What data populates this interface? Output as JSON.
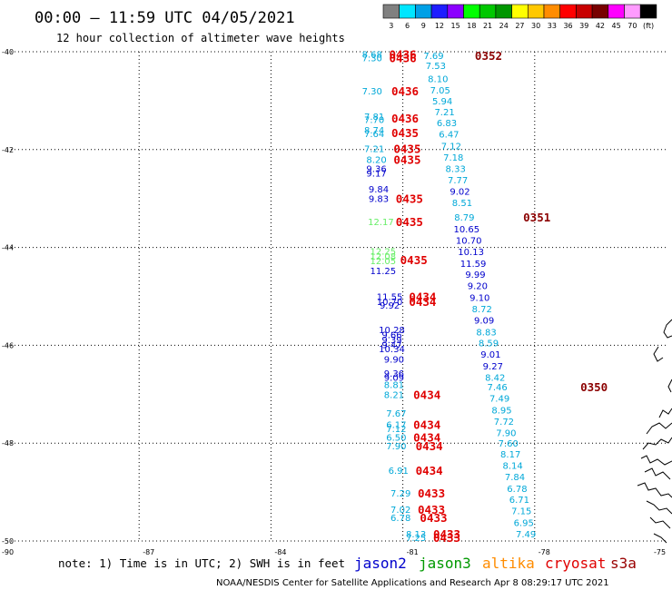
{
  "title": "00:00 – 11:59 UTC 04/05/2021",
  "subtitle": "12 hour collection of altimeter wave heights",
  "scale": {
    "colors": [
      "#808080",
      "#00e6ff",
      "#00a0e6",
      "#1e1eff",
      "#8c00ff",
      "#00ff00",
      "#00c800",
      "#009600",
      "#ffff00",
      "#ffc800",
      "#ff8c00",
      "#ff0000",
      "#c80000",
      "#780000",
      "#ff00ff",
      "#ff9bff",
      "#000000"
    ],
    "labels": [
      "3",
      "6",
      "9",
      "12",
      "15",
      "18",
      "21",
      "24",
      "27",
      "30",
      "33",
      "36",
      "39",
      "42",
      "45",
      "70",
      "(ft)"
    ]
  },
  "note": "note: 1) Time is in UTC; 2) SWH is in feet",
  "satellites": [
    {
      "name": "jason2",
      "color": "#0000cc"
    },
    {
      "name": "jason3",
      "color": "#009900"
    },
    {
      "name": "altika",
      "color": "#ff8c00"
    },
    {
      "name": "cryosat",
      "color": "#e00000"
    },
    {
      "name": "s3a",
      "color": "#990000"
    }
  ],
  "footer": "NOAA/NESDIS Center for Satellite Applications and Research   Apr  8 08:29:17 UTC 2021",
  "chart_data": {
    "type": "scatter",
    "title": "00:00 – 11:59 UTC 04/05/2021",
    "subtitle": "12 hour collection of altimeter wave heights",
    "xlim": [
      -90,
      -75
    ],
    "ylim": [
      -50,
      -40
    ],
    "x_ticks": [
      -90,
      -87,
      -84,
      -81,
      -78,
      -75
    ],
    "y_ticks": [
      -40,
      -42,
      -44,
      -46,
      -48,
      -50
    ],
    "x_tick_labels": [
      "-90",
      "-87",
      "-84",
      "-81",
      "-78",
      "-75"
    ],
    "y_tick_labels": [
      "-40",
      "-42",
      "-44",
      "-46",
      "-48",
      "-50"
    ],
    "grid": true,
    "colors": {
      "cyan": "#00a8d8",
      "blue": "#0000cc",
      "green": "#66ee66",
      "red": "#e00000",
      "darkred": "#8b0000"
    },
    "wave_heights": [
      {
        "x": -81.7,
        "y": -40.05,
        "v": "8.68",
        "c": "cyan"
      },
      {
        "x": -81.7,
        "y": -40.12,
        "v": "7.30",
        "c": "cyan"
      },
      {
        "x": -81.7,
        "y": -40.8,
        "v": "7.30",
        "c": "cyan"
      },
      {
        "x": -81.65,
        "y": -41.32,
        "v": "7.81",
        "c": "cyan"
      },
      {
        "x": -81.65,
        "y": -41.38,
        "v": "7.70",
        "c": "cyan"
      },
      {
        "x": -81.65,
        "y": -41.6,
        "v": "8.74",
        "c": "cyan"
      },
      {
        "x": -81.65,
        "y": -41.67,
        "v": "7.64",
        "c": "cyan"
      },
      {
        "x": -81.65,
        "y": -41.98,
        "v": "7.21",
        "c": "cyan"
      },
      {
        "x": -81.6,
        "y": -42.2,
        "v": "8.20",
        "c": "cyan"
      },
      {
        "x": -81.6,
        "y": -42.38,
        "v": "9.36",
        "c": "blue"
      },
      {
        "x": -81.6,
        "y": -42.48,
        "v": "9.17",
        "c": "blue"
      },
      {
        "x": -81.55,
        "y": -42.8,
        "v": "9.84",
        "c": "blue"
      },
      {
        "x": -81.55,
        "y": -43.0,
        "v": "9.83",
        "c": "blue"
      },
      {
        "x": -81.5,
        "y": -43.47,
        "v": "12.17",
        "c": "green"
      },
      {
        "x": -81.45,
        "y": -44.07,
        "v": "12.25",
        "c": "green"
      },
      {
        "x": -81.45,
        "y": -44.17,
        "v": "12.08",
        "c": "green"
      },
      {
        "x": -81.45,
        "y": -44.27,
        "v": "12.05",
        "c": "green"
      },
      {
        "x": -81.45,
        "y": -44.47,
        "v": "11.25",
        "c": "blue"
      },
      {
        "x": -81.3,
        "y": -45.0,
        "v": "11.55",
        "c": "blue"
      },
      {
        "x": -81.3,
        "y": -45.1,
        "v": "10.70",
        "c": "blue"
      },
      {
        "x": -81.3,
        "y": -45.18,
        "v": "9.92",
        "c": "blue"
      },
      {
        "x": -81.25,
        "y": -45.68,
        "v": "10.28",
        "c": "blue"
      },
      {
        "x": -81.25,
        "y": -45.78,
        "v": "9.66",
        "c": "blue"
      },
      {
        "x": -81.25,
        "y": -45.88,
        "v": "9.39",
        "c": "blue"
      },
      {
        "x": -81.25,
        "y": -45.98,
        "v": "9.47",
        "c": "blue"
      },
      {
        "x": -81.25,
        "y": -46.07,
        "v": "10.34",
        "c": "blue"
      },
      {
        "x": -81.2,
        "y": -46.28,
        "v": "9.90",
        "c": "blue"
      },
      {
        "x": -81.2,
        "y": -46.57,
        "v": "9.36",
        "c": "blue"
      },
      {
        "x": -81.2,
        "y": -46.65,
        "v": "9.09",
        "c": "blue"
      },
      {
        "x": -81.2,
        "y": -46.8,
        "v": "8.81",
        "c": "cyan"
      },
      {
        "x": -81.2,
        "y": -47.0,
        "v": "8.21",
        "c": "cyan"
      },
      {
        "x": -81.15,
        "y": -47.38,
        "v": "7.67",
        "c": "cyan"
      },
      {
        "x": -81.15,
        "y": -47.62,
        "v": "6.17",
        "c": "cyan"
      },
      {
        "x": -81.15,
        "y": -47.7,
        "v": "7.12",
        "c": "cyan"
      },
      {
        "x": -81.15,
        "y": -47.88,
        "v": "6.50",
        "c": "cyan"
      },
      {
        "x": -81.15,
        "y": -48.05,
        "v": "7.90",
        "c": "cyan"
      },
      {
        "x": -81.1,
        "y": -48.55,
        "v": "6.91",
        "c": "cyan"
      },
      {
        "x": -81.05,
        "y": -49.02,
        "v": "7.29",
        "c": "cyan"
      },
      {
        "x": -81.05,
        "y": -49.35,
        "v": "7.02",
        "c": "cyan"
      },
      {
        "x": -81.05,
        "y": -49.52,
        "v": "6.78",
        "c": "cyan"
      },
      {
        "x": -80.7,
        "y": -49.85,
        "v": "8.13",
        "c": "cyan"
      },
      {
        "x": -80.7,
        "y": -49.93,
        "v": "7.25",
        "c": "cyan"
      },
      {
        "x": -80.3,
        "y": -40.07,
        "v": "7.69",
        "c": "cyan"
      },
      {
        "x": -80.25,
        "y": -40.28,
        "v": "7.53",
        "c": "cyan"
      },
      {
        "x": -80.2,
        "y": -40.55,
        "v": "8.10",
        "c": "cyan"
      },
      {
        "x": -80.15,
        "y": -40.78,
        "v": "7.05",
        "c": "cyan"
      },
      {
        "x": -80.1,
        "y": -41.0,
        "v": "5.94",
        "c": "cyan"
      },
      {
        "x": -80.05,
        "y": -41.22,
        "v": "7.21",
        "c": "cyan"
      },
      {
        "x": -80.0,
        "y": -41.45,
        "v": "6.83",
        "c": "cyan"
      },
      {
        "x": -79.95,
        "y": -41.68,
        "v": "6.47",
        "c": "cyan"
      },
      {
        "x": -79.9,
        "y": -41.92,
        "v": "7.12",
        "c": "cyan"
      },
      {
        "x": -79.85,
        "y": -42.15,
        "v": "7.18",
        "c": "cyan"
      },
      {
        "x": -79.8,
        "y": -42.38,
        "v": "8.33",
        "c": "cyan"
      },
      {
        "x": -79.75,
        "y": -42.62,
        "v": "7.77",
        "c": "cyan"
      },
      {
        "x": -79.7,
        "y": -42.85,
        "v": "9.02",
        "c": "blue"
      },
      {
        "x": -79.65,
        "y": -43.08,
        "v": "8.51",
        "c": "cyan"
      },
      {
        "x": -79.6,
        "y": -43.38,
        "v": "8.79",
        "c": "cyan"
      },
      {
        "x": -79.55,
        "y": -43.62,
        "v": "10.65",
        "c": "blue"
      },
      {
        "x": -79.5,
        "y": -43.85,
        "v": "10.70",
        "c": "blue"
      },
      {
        "x": -79.45,
        "y": -44.08,
        "v": "10.13",
        "c": "blue"
      },
      {
        "x": -79.4,
        "y": -44.32,
        "v": "11.59",
        "c": "blue"
      },
      {
        "x": -79.35,
        "y": -44.55,
        "v": "9.99",
        "c": "blue"
      },
      {
        "x": -79.3,
        "y": -44.78,
        "v": "9.20",
        "c": "blue"
      },
      {
        "x": -79.25,
        "y": -45.02,
        "v": "9.10",
        "c": "blue"
      },
      {
        "x": -79.2,
        "y": -45.25,
        "v": "8.72",
        "c": "cyan"
      },
      {
        "x": -79.15,
        "y": -45.48,
        "v": "9.09",
        "c": "blue"
      },
      {
        "x": -79.1,
        "y": -45.72,
        "v": "8.83",
        "c": "cyan"
      },
      {
        "x": -79.05,
        "y": -45.95,
        "v": "8.59",
        "c": "cyan"
      },
      {
        "x": -79.0,
        "y": -46.18,
        "v": "9.01",
        "c": "blue"
      },
      {
        "x": -78.95,
        "y": -46.42,
        "v": "9.27",
        "c": "blue"
      },
      {
        "x": -78.9,
        "y": -46.65,
        "v": "8.42",
        "c": "cyan"
      },
      {
        "x": -78.85,
        "y": -46.85,
        "v": "7.46",
        "c": "cyan"
      },
      {
        "x": -78.8,
        "y": -47.08,
        "v": "7.49",
        "c": "cyan"
      },
      {
        "x": -78.75,
        "y": -47.32,
        "v": "8.95",
        "c": "cyan"
      },
      {
        "x": -78.7,
        "y": -47.55,
        "v": "7.72",
        "c": "cyan"
      },
      {
        "x": -78.65,
        "y": -47.78,
        "v": "7.90",
        "c": "cyan"
      },
      {
        "x": -78.6,
        "y": -48.0,
        "v": "7.60",
        "c": "cyan"
      },
      {
        "x": -78.55,
        "y": -48.22,
        "v": "8.17",
        "c": "cyan"
      },
      {
        "x": -78.5,
        "y": -48.45,
        "v": "8.14",
        "c": "cyan"
      },
      {
        "x": -78.45,
        "y": -48.68,
        "v": "7.84",
        "c": "cyan"
      },
      {
        "x": -78.4,
        "y": -48.92,
        "v": "6.78",
        "c": "cyan"
      },
      {
        "x": -78.35,
        "y": -49.15,
        "v": "6.71",
        "c": "cyan"
      },
      {
        "x": -78.3,
        "y": -49.38,
        "v": "7.15",
        "c": "cyan"
      },
      {
        "x": -78.25,
        "y": -49.62,
        "v": "6.95",
        "c": "cyan"
      },
      {
        "x": -78.2,
        "y": -49.85,
        "v": "7.49",
        "c": "cyan"
      }
    ],
    "time_labels": [
      {
        "x": -81.0,
        "y": -40.05,
        "v": "0436",
        "c": "red"
      },
      {
        "x": -81.0,
        "y": -40.12,
        "v": "0436",
        "c": "red"
      },
      {
        "x": -80.95,
        "y": -40.8,
        "v": "0436",
        "c": "red"
      },
      {
        "x": -80.95,
        "y": -41.35,
        "v": "0436",
        "c": "red"
      },
      {
        "x": -80.95,
        "y": -41.65,
        "v": "0435",
        "c": "red"
      },
      {
        "x": -80.9,
        "y": -41.98,
        "v": "0435",
        "c": "red"
      },
      {
        "x": -80.9,
        "y": -42.2,
        "v": "0435",
        "c": "red"
      },
      {
        "x": -80.85,
        "y": -43.0,
        "v": "0435",
        "c": "red"
      },
      {
        "x": -80.85,
        "y": -43.47,
        "v": "0435",
        "c": "red"
      },
      {
        "x": -80.75,
        "y": -44.25,
        "v": "0435",
        "c": "red"
      },
      {
        "x": -80.55,
        "y": -45.0,
        "v": "0434",
        "c": "red"
      },
      {
        "x": -80.55,
        "y": -45.1,
        "v": "0434",
        "c": "red"
      },
      {
        "x": -80.45,
        "y": -47.0,
        "v": "0434",
        "c": "red"
      },
      {
        "x": -80.45,
        "y": -47.62,
        "v": "0434",
        "c": "red"
      },
      {
        "x": -80.45,
        "y": -47.88,
        "v": "0434",
        "c": "red"
      },
      {
        "x": -80.4,
        "y": -48.05,
        "v": "0434",
        "c": "red"
      },
      {
        "x": -80.4,
        "y": -48.55,
        "v": "0434",
        "c": "red"
      },
      {
        "x": -80.35,
        "y": -49.02,
        "v": "0433",
        "c": "red"
      },
      {
        "x": -80.35,
        "y": -49.35,
        "v": "0433",
        "c": "red"
      },
      {
        "x": -80.3,
        "y": -49.52,
        "v": "0433",
        "c": "red"
      },
      {
        "x": -80.0,
        "y": -49.85,
        "v": "0433",
        "c": "red"
      },
      {
        "x": -80.0,
        "y": -49.93,
        "v": "0433",
        "c": "red"
      },
      {
        "x": -79.05,
        "y": -40.07,
        "v": "0352",
        "c": "darkred"
      },
      {
        "x": -77.95,
        "y": -43.38,
        "v": "0351",
        "c": "darkred"
      },
      {
        "x": -76.65,
        "y": -46.85,
        "v": "0350",
        "c": "darkred"
      }
    ]
  }
}
